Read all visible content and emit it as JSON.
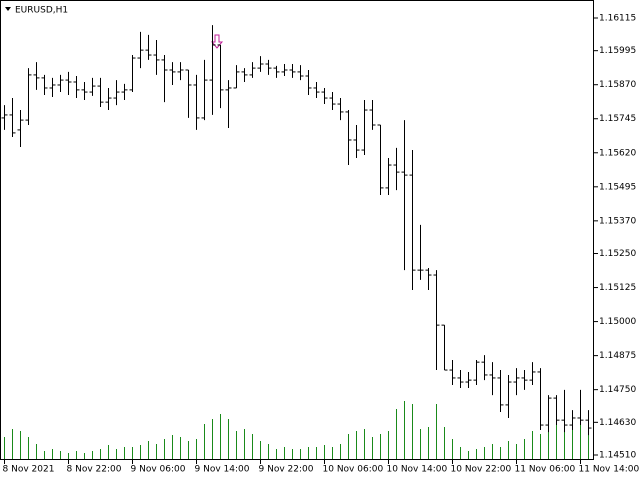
{
  "chart_data": {
    "type": "ohlc",
    "title": "EURUSD,H1",
    "x_labels": [
      "8 Nov 2021",
      "8 Nov 22:00",
      "9 Nov 06:00",
      "9 Nov 14:00",
      "9 Nov 22:00",
      "10 Nov 06:00",
      "10 Nov 14:00",
      "10 Nov 22:00",
      "11 Nov 06:00",
      "11 Nov 14:00"
    ],
    "ylim": [
      1.1451,
      1.16115
    ],
    "yticks": [
      1.16115,
      1.15995,
      {
        "value": 1.1587,
        "label": "1.15870"
      },
      1.15745,
      {
        "value": 1.1562,
        "label": "1.15620"
      },
      1.15495,
      {
        "value": 1.1537,
        "label": "1.15370"
      },
      {
        "value": 1.1525,
        "label": "1.15250"
      },
      1.15125,
      {
        "value": 1.15,
        "label": "1.15000"
      },
      1.14875,
      {
        "value": 1.1475,
        "label": "1.14750"
      },
      {
        "value": 1.1463,
        "label": "1.14630"
      },
      {
        "value": 1.1451,
        "label": "1.14510"
      }
    ],
    "bar_color": "#000000",
    "volume_color": "#1a8a1a",
    "open": [
      1.15748,
      1.15759,
      1.15704,
      1.1574,
      1.15906,
      1.15895,
      1.15858,
      1.15869,
      1.15887,
      1.1588,
      1.15851,
      1.15843,
      1.15865,
      1.15806,
      1.15821,
      1.15843,
      1.15851,
      1.15968,
      1.15997,
      1.15979,
      1.15961,
      1.15924,
      1.15917,
      1.15924,
      1.15869,
      1.15748,
      1.15887,
      1.16016,
      1.15851,
      1.15858,
      1.15917,
      1.15906,
      1.15931,
      1.15946,
      1.15931,
      1.15917,
      1.15924,
      1.15917,
      1.15902,
      1.15858,
      1.15843,
      1.15821,
      1.15799,
      1.1577,
      1.15667,
      1.1563,
      1.15777,
      1.15722,
      1.15491,
      1.15575,
      1.15549,
      1.15538,
      1.15189,
      1.15189,
      1.15171,
      1.14987,
      1.14822,
      1.14793,
      1.14778,
      1.14785,
      1.14851,
      1.14804,
      1.14793,
      1.14694,
      1.14778,
      1.14793,
      1.14785,
      1.14815,
      1.1462,
      1.14719,
      1.14638,
      1.1462,
      1.14646,
      1.14638
    ],
    "high": [
      1.15795,
      1.15821,
      1.15777,
      1.15931,
      1.15953,
      1.15906,
      1.15895,
      1.15906,
      1.15917,
      1.15902,
      1.1588,
      1.15895,
      1.15895,
      1.15858,
      1.15887,
      1.15873,
      1.15979,
      1.16064,
      1.16053,
      1.16034,
      1.15979,
      1.15953,
      1.15953,
      1.15924,
      1.15906,
      1.15961,
      1.16089,
      1.16016,
      1.15887,
      1.15942,
      1.15931,
      1.15953,
      1.15975,
      1.15961,
      1.15939,
      1.15946,
      1.15946,
      1.15942,
      1.15924,
      1.1588,
      1.15858,
      1.15843,
      1.15821,
      1.15777,
      1.15722,
      1.15814,
      1.15814,
      1.15722,
      1.15601,
      1.15638,
      1.1574,
      1.1563,
      1.15355,
      1.15197,
      1.15189,
      1.14987,
      1.14859,
      1.14822,
      1.14815,
      1.14859,
      1.14877,
      1.14851,
      1.14822,
      1.14804,
      1.14829,
      1.14822,
      1.14851,
      1.14829,
      1.1473,
      1.1473,
      1.14749,
      1.14675,
      1.14749,
      1.14675
    ],
    "low": [
      1.15704,
      1.15678,
      1.15641,
      1.15722,
      1.15851,
      1.15832,
      1.15825,
      1.15843,
      1.15832,
      1.15821,
      1.15814,
      1.15829,
      1.15788,
      1.15777,
      1.15795,
      1.15814,
      1.15843,
      1.15931,
      1.15961,
      1.15906,
      1.15806,
      1.15869,
      1.15887,
      1.15748,
      1.15704,
      1.1574,
      1.15759,
      1.15784,
      1.15711,
      1.15858,
      1.1588,
      1.15895,
      1.15917,
      1.15906,
      1.15895,
      1.15902,
      1.15895,
      1.15887,
      1.15832,
      1.15821,
      1.15799,
      1.15777,
      1.1574,
      1.15575,
      1.15601,
      1.15612,
      1.15704,
      1.15465,
      1.15465,
      1.15483,
      1.15189,
      1.15116,
      1.15153,
      1.15116,
      1.14822,
      1.14822,
      1.14767,
      1.14756,
      1.14756,
      1.14767,
      1.14785,
      1.1473,
      1.14668,
      1.14646,
      1.1473,
      1.14749,
      1.14767,
      1.14602,
      1.14594,
      1.1462,
      1.14594,
      1.14602,
      1.1462,
      1.14583
    ],
    "close": [
      1.15759,
      1.15693,
      1.1574,
      1.15906,
      1.15895,
      1.15858,
      1.15869,
      1.15887,
      1.1588,
      1.15851,
      1.15843,
      1.15865,
      1.15806,
      1.15821,
      1.15843,
      1.15851,
      1.15968,
      1.15997,
      1.15979,
      1.15961,
      1.15924,
      1.15917,
      1.15924,
      1.15869,
      1.15748,
      1.15887,
      1.16016,
      1.15851,
      1.15858,
      1.15917,
      1.15906,
      1.15931,
      1.15946,
      1.15931,
      1.15917,
      1.15924,
      1.15917,
      1.15902,
      1.15858,
      1.15843,
      1.15821,
      1.15799,
      1.1577,
      1.15667,
      1.1563,
      1.15777,
      1.15722,
      1.15491,
      1.15575,
      1.15549,
      1.15538,
      1.15189,
      1.15189,
      1.15171,
      1.14987,
      1.14822,
      1.14793,
      1.14778,
      1.14785,
      1.14851,
      1.14804,
      1.14793,
      1.14694,
      1.14778,
      1.14793,
      1.14785,
      1.14815,
      1.1462,
      1.14719,
      1.14638,
      1.1462,
      1.14646,
      1.14638,
      1.14609
    ],
    "volume": [
      440,
      600,
      560,
      440,
      300,
      160,
      200,
      160,
      120,
      160,
      120,
      160,
      200,
      280,
      200,
      240,
      240,
      280,
      360,
      300,
      400,
      480,
      440,
      360,
      400,
      700,
      800,
      900,
      800,
      560,
      600,
      500,
      360,
      300,
      200,
      240,
      200,
      200,
      240,
      240,
      280,
      240,
      300,
      500,
      560,
      600,
      440,
      500,
      560,
      1000,
      1160,
      1100,
      600,
      640,
      1100,
      640,
      400,
      240,
      160,
      200,
      240,
      300,
      240,
      360,
      300,
      400,
      560,
      500,
      1000,
      900,
      800,
      700,
      900,
      800
    ]
  }
}
